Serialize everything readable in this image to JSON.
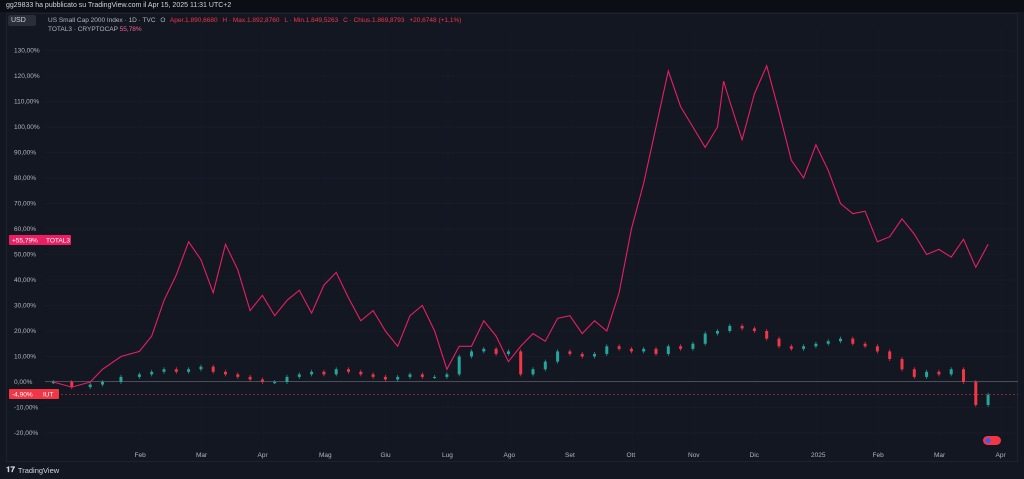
{
  "publisher_line": "gg29833 ha pubblicato su TradingView.com il Apr 15, 2025 11:31 UTC+2",
  "currency": "USD",
  "legend": {
    "main_name": "US Small Cap 2000 Index · 1D · TVC",
    "open_label": "O",
    "open": "Aper.1.890,6680",
    "high": "H · Max.1.892,8760",
    "low": "L · Min.1.849,5263",
    "close": "C · Chius.1.869,8793",
    "change": "+20,6748 (+1,1%)",
    "compare_name": "TOTAL3 · CRYPTOCAP",
    "compare_value": "55,78%"
  },
  "badges": {
    "total3_value": "+55,79%",
    "total3_name": "TOTAL3",
    "iut_value": "-4,90%",
    "iut_name": "IUT"
  },
  "watermark": "TradingView",
  "colors": {
    "background": "#131722",
    "up": "#26a69a",
    "down": "#f23645",
    "compare_line": "#e91e63"
  },
  "chart_data": {
    "type": "line",
    "scale": "percent",
    "ylim": [
      -25,
      140
    ],
    "y_ticks": [
      "130,00%",
      "120,00%",
      "110,00%",
      "100,00%",
      "90,00%",
      "80,00%",
      "70,00%",
      "60,00%",
      "50,00%",
      "40,00%",
      "30,00%",
      "20,00%",
      "10,00%",
      "0,00%",
      "-10,00%",
      "-20,00%"
    ],
    "y_tick_values": [
      130,
      120,
      110,
      100,
      90,
      80,
      70,
      60,
      50,
      40,
      30,
      20,
      10,
      0,
      -10,
      -20
    ],
    "x_ticks": [
      "Feb",
      "Mar",
      "Apr",
      "Mag",
      "Giu",
      "Lug",
      "Ago",
      "Set",
      "Ott",
      "Nov",
      "Dic",
      "2025",
      "Feb",
      "Mar",
      "Apr"
    ],
    "x_tick_months": [
      1,
      2,
      3,
      4,
      5,
      6,
      7,
      8,
      9,
      10,
      11,
      12,
      13,
      14,
      15
    ],
    "series": [
      {
        "name": "TOTAL3",
        "style": "line",
        "x_months": [
          0.2,
          0.5,
          0.8,
          1.0,
          1.3,
          1.6,
          1.8,
          2.0,
          2.2,
          2.4,
          2.6,
          2.8,
          3.0,
          3.2,
          3.4,
          3.6,
          3.8,
          4.0,
          4.2,
          4.4,
          4.6,
          4.8,
          5.0,
          5.2,
          5.4,
          5.6,
          5.8,
          6.0,
          6.2,
          6.4,
          6.6,
          6.8,
          7.0,
          7.2,
          7.4,
          7.6,
          7.8,
          8.0,
          8.2,
          8.4,
          8.6,
          8.8,
          9.0,
          9.2,
          9.4,
          9.6,
          9.8,
          10.0,
          10.2,
          10.4,
          10.6,
          10.8,
          11.0,
          11.1,
          11.2,
          11.4,
          11.6,
          11.8,
          12.0,
          12.2,
          12.4,
          12.6,
          12.8,
          13.0,
          13.2,
          13.4,
          13.6,
          13.8,
          14.0,
          14.2,
          14.4,
          14.6,
          14.8,
          15.0,
          15.2,
          15.4
        ],
        "values": [
          0,
          -2,
          0,
          5,
          10,
          12,
          18,
          32,
          42,
          55,
          48,
          35,
          54,
          44,
          28,
          34,
          26,
          32,
          36,
          27,
          38,
          43,
          33,
          24,
          28,
          20,
          14,
          26,
          30,
          20,
          5,
          14,
          14,
          24,
          18,
          8,
          14,
          19,
          16,
          25,
          26,
          19,
          24,
          20,
          35,
          60,
          78,
          100,
          122,
          108,
          100,
          92,
          100,
          118,
          110,
          95,
          113,
          124,
          106,
          87,
          80,
          93,
          83,
          70,
          66,
          67,
          55,
          57,
          64,
          58,
          50,
          52,
          49,
          56,
          45,
          54
        ]
      },
      {
        "name": "IUT",
        "style": "candles",
        "x_months": [
          0.2,
          0.5,
          0.8,
          1.0,
          1.3,
          1.6,
          1.8,
          2.0,
          2.2,
          2.4,
          2.6,
          2.8,
          3.0,
          3.2,
          3.4,
          3.6,
          3.8,
          4.0,
          4.2,
          4.4,
          4.6,
          4.8,
          5.0,
          5.2,
          5.4,
          5.6,
          5.8,
          6.0,
          6.2,
          6.4,
          6.6,
          6.8,
          7.0,
          7.2,
          7.4,
          7.6,
          7.8,
          8.0,
          8.2,
          8.4,
          8.6,
          8.8,
          9.0,
          9.2,
          9.4,
          9.6,
          9.8,
          10.0,
          10.2,
          10.4,
          10.6,
          10.8,
          11.0,
          11.2,
          11.4,
          11.6,
          11.8,
          12.0,
          12.2,
          12.4,
          12.6,
          12.8,
          13.0,
          13.2,
          13.4,
          13.6,
          13.8,
          14.0,
          14.2,
          14.4,
          14.6,
          14.8,
          15.0,
          15.2,
          15.4
        ],
        "values": [
          0,
          -2,
          -1,
          0,
          2,
          3,
          4,
          5,
          4,
          5,
          6,
          4,
          3,
          2,
          1,
          0,
          0,
          2,
          3,
          4,
          3,
          5,
          4,
          3,
          2,
          1,
          2,
          3,
          2,
          2,
          3,
          10,
          12,
          13,
          11,
          12,
          3,
          5,
          8,
          12,
          11,
          10,
          11,
          14,
          13,
          12,
          13,
          11,
          14,
          13,
          15,
          19,
          20,
          22,
          21,
          20,
          17,
          14,
          13,
          14,
          15,
          16,
          17,
          15,
          14,
          12,
          9,
          5,
          2,
          4,
          3,
          5,
          0,
          -9,
          -5
        ]
      }
    ]
  }
}
